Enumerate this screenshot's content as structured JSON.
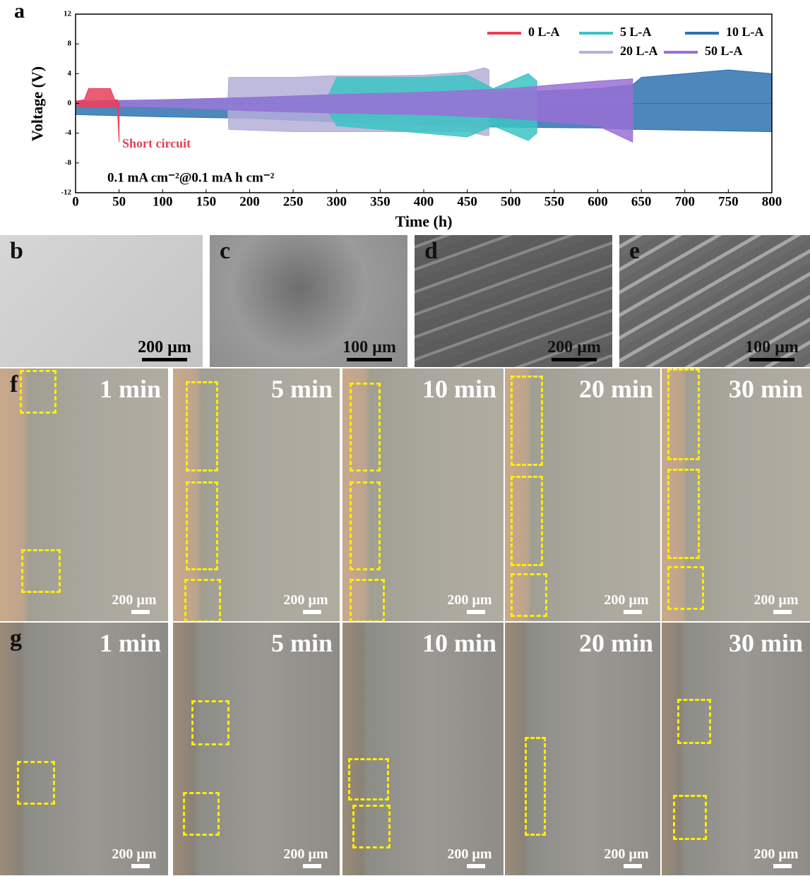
{
  "chart_data": {
    "type": "area-band",
    "panel_label": "a",
    "xlabel": "Time (h)",
    "ylabel": "Voltage (V)",
    "xlim": [
      0,
      800
    ],
    "ylim": [
      -12,
      12
    ],
    "xticks": [
      0,
      50,
      100,
      150,
      200,
      250,
      300,
      350,
      400,
      450,
      500,
      550,
      600,
      650,
      700,
      750,
      800
    ],
    "yticks": [
      -12,
      -8,
      -4,
      0,
      4,
      8,
      12
    ],
    "legend": "upper right",
    "annotations": [
      "Short circuit",
      "0.1 mA cm⁻²@0.1 mA h cm⁻²"
    ],
    "series": [
      {
        "name": "0 L-A",
        "color": "#e8405a",
        "x": [
          0,
          10,
          15,
          20,
          40,
          45,
          48,
          50
        ],
        "upper": [
          0.3,
          0.5,
          2,
          2,
          2,
          0.5,
          0.5,
          0
        ],
        "lower": [
          -0.3,
          -0.5,
          -0.5,
          -0.5,
          -0.5,
          -0.5,
          -0.5,
          -5.2
        ]
      },
      {
        "name": "5 L-A",
        "color": "#3cc4c4",
        "x": [
          0,
          100,
          200,
          290,
          300,
          350,
          400,
          450,
          480,
          500,
          520,
          530
        ],
        "upper": [
          0.2,
          0.5,
          0.8,
          1,
          3.5,
          3.5,
          3.5,
          3.8,
          2,
          3,
          4,
          3
        ],
        "lower": [
          -0.2,
          -0.5,
          -0.8,
          -1,
          -3,
          -3.5,
          -4,
          -4.5,
          -3,
          -4,
          -5,
          -4
        ]
      },
      {
        "name": "10 L-A",
        "color": "#2f72b0",
        "x": [
          0,
          100,
          200,
          300,
          400,
          500,
          600,
          640,
          650,
          700,
          750,
          800
        ],
        "upper": [
          0.3,
          0.4,
          0.5,
          0.8,
          1,
          1.5,
          2,
          2.5,
          3.5,
          4,
          4.5,
          4
        ],
        "lower": [
          -1.5,
          -1.8,
          -2,
          -2.5,
          -3,
          -3.2,
          -3.3,
          -3.5,
          -3.5,
          -3.6,
          -3.7,
          -3.8
        ]
      },
      {
        "name": "20 L-A",
        "color": "#b3afd8",
        "x": [
          0,
          175,
          176,
          250,
          290,
          350,
          400,
          450,
          470,
          475
        ],
        "upper": [
          0.3,
          0.6,
          3.5,
          3.5,
          3.7,
          3.7,
          3.8,
          4.2,
          4.8,
          4.5
        ],
        "lower": [
          -0.3,
          -0.6,
          -3.5,
          -3.8,
          -3.8,
          -3.8,
          -3.8,
          -3.8,
          -4.3,
          -4.3
        ]
      },
      {
        "name": "50 L-A",
        "color": "#9a6fd6",
        "x": [
          0,
          100,
          200,
          300,
          400,
          500,
          600,
          640
        ],
        "upper": [
          0.3,
          0.5,
          0.8,
          1.2,
          1.5,
          2,
          3,
          3.3
        ],
        "lower": [
          -0.3,
          -0.5,
          -1,
          -1.3,
          -1.5,
          -2,
          -3,
          -5.2
        ]
      }
    ]
  },
  "sem_images": [
    {
      "label": "b",
      "scale_bar": "200 µm"
    },
    {
      "label": "c",
      "scale_bar": "100 µm"
    },
    {
      "label": "d",
      "scale_bar": "200 µm"
    },
    {
      "label": "e",
      "scale_bar": "100 µm"
    }
  ],
  "optical_rows": [
    {
      "label": "f",
      "images": [
        {
          "time": "1 min",
          "scale_bar": "200 µm"
        },
        {
          "time": "5 min",
          "scale_bar": "200 µm"
        },
        {
          "time": "10 min",
          "scale_bar": "200 µm"
        },
        {
          "time": "20 min",
          "scale_bar": "200 µm"
        },
        {
          "time": "30 min",
          "scale_bar": "200 µm"
        }
      ]
    },
    {
      "label": "g",
      "images": [
        {
          "time": "1 min",
          "scale_bar": "200 µm"
        },
        {
          "time": "5 min",
          "scale_bar": "200 µm"
        },
        {
          "time": "10 min",
          "scale_bar": "200 µm"
        },
        {
          "time": "20 min",
          "scale_bar": "200 µm"
        },
        {
          "time": "30 min",
          "scale_bar": "200 µm"
        }
      ]
    }
  ]
}
